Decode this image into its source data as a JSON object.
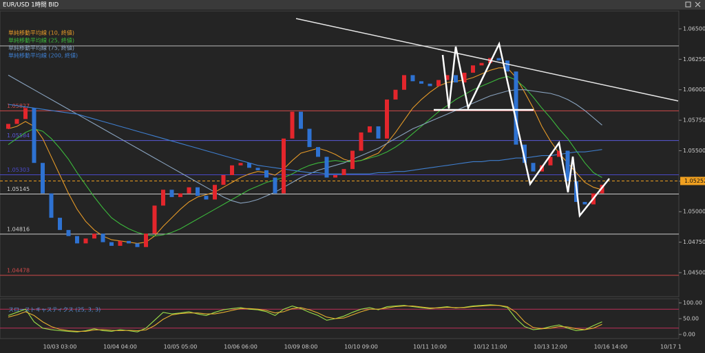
{
  "window": {
    "title": "EUR/USD 1時間 BID"
  },
  "chart_data": [
    {
      "type": "candlestick",
      "categories": [
        null,
        null,
        null,
        null,
        null,
        null,
        "10/03 03:00",
        null,
        null,
        null,
        null,
        null,
        null,
        "10/04 04:00",
        null,
        null,
        null,
        null,
        null,
        null,
        "10/05 05:00",
        null,
        null,
        null,
        null,
        null,
        null,
        "10/06 06:00",
        null,
        null,
        null,
        null,
        null,
        null,
        "10/09 08:00",
        null,
        null,
        null,
        null,
        null,
        null,
        "10/10 09:00",
        null,
        null,
        null,
        null,
        null,
        null,
        null,
        "10/11 10:00",
        null,
        null,
        null,
        null,
        null,
        null,
        "10/12 11:00",
        null,
        null,
        null,
        null,
        null,
        null,
        "10/13 12:00",
        null,
        null,
        null,
        null,
        null,
        null,
        "10/16 14:00",
        null,
        null,
        null,
        null,
        null,
        null,
        "10/17 1"
      ],
      "open": [
        1.0568,
        1.0572,
        1.0576,
        1.0585,
        1.054,
        1.0515,
        1.0495,
        1.0485,
        1.048,
        1.0474,
        1.0478,
        1.0482,
        1.0475,
        1.0472,
        1.0476,
        1.0474,
        1.0471,
        1.0482,
        1.0505,
        1.0518,
        1.0512,
        1.0515,
        1.052,
        1.0513,
        1.051,
        1.0522,
        1.053,
        1.0538,
        1.054,
        1.0536,
        1.0534,
        1.0528,
        1.0515,
        1.056,
        1.0582,
        1.0568,
        1.0553,
        1.0545,
        1.0528,
        1.053,
        1.0535,
        1.055,
        1.0565,
        1.057,
        1.056,
        1.0592,
        1.06,
        1.0612,
        1.0607,
        1.0605,
        1.0603,
        1.0608,
        1.0612,
        1.0606,
        1.0614,
        1.062,
        1.0622,
        1.0626,
        1.0624,
        1.0615,
        1.0555,
        1.054,
        1.0533,
        1.0538,
        1.0545,
        1.055,
        1.0525,
        1.0508,
        1.0506,
        1.0515,
        null,
        null,
        null,
        null,
        null,
        null,
        null,
        null
      ],
      "close": [
        1.0572,
        1.0576,
        1.0585,
        1.054,
        1.0515,
        1.0495,
        1.0485,
        1.048,
        1.0474,
        1.0478,
        1.0482,
        1.0475,
        1.0472,
        1.0476,
        1.0474,
        1.0471,
        1.0482,
        1.0505,
        1.0518,
        1.0512,
        1.0515,
        1.052,
        1.0513,
        1.051,
        1.0522,
        1.053,
        1.0538,
        1.054,
        1.0536,
        1.0534,
        1.0528,
        1.0515,
        1.056,
        1.0582,
        1.0568,
        1.0553,
        1.0545,
        1.0528,
        1.053,
        1.0535,
        1.055,
        1.0565,
        1.057,
        1.056,
        1.0592,
        1.06,
        1.0612,
        1.0607,
        1.0605,
        1.0603,
        1.0608,
        1.0612,
        1.0606,
        1.0614,
        1.062,
        1.0622,
        1.0626,
        1.0624,
        1.0615,
        1.0555,
        1.054,
        1.0533,
        1.0538,
        1.0545,
        1.055,
        1.0525,
        1.0508,
        1.0506,
        1.0515,
        1.0522,
        null,
        null,
        null,
        null,
        null,
        null,
        null,
        null
      ],
      "up_color": "#e3262c",
      "down_color": "#2e72d2",
      "series": [
        {
          "name": "単純移動平均線 (10, 終値)",
          "color": "#e69a28",
          "values": [
            1.0568,
            1.057,
            1.0574,
            1.057,
            1.056,
            1.0545,
            1.053,
            1.0515,
            1.0502,
            1.0492,
            1.0485,
            1.048,
            1.0477,
            1.0476,
            1.0475,
            1.0474,
            1.0475,
            1.048,
            1.0488,
            1.0495,
            1.0502,
            1.0508,
            1.0512,
            1.0514,
            1.0516,
            1.052,
            1.0524,
            1.0528,
            1.0531,
            1.0533,
            1.0532,
            1.053,
            1.0535,
            1.0542,
            1.0548,
            1.055,
            1.0552,
            1.055,
            1.0547,
            1.0543,
            1.0541,
            1.0542,
            1.0545,
            1.0548,
            1.0556,
            1.0565,
            1.0575,
            1.0585,
            1.0592,
            1.0598,
            1.0603,
            1.0606,
            1.0607,
            1.0608,
            1.061,
            1.0613,
            1.0616,
            1.0618,
            1.0618,
            1.061,
            1.0598,
            1.0585,
            1.057,
            1.0558,
            1.0548,
            1.054,
            1.0532,
            1.0524,
            1.052,
            1.0518,
            null,
            null,
            null,
            null,
            null,
            null,
            null,
            null
          ]
        },
        {
          "name": "単純移動平均線 (25, 終値)",
          "color": "#3cb83c",
          "values": [
            1.0555,
            1.056,
            1.0565,
            1.0568,
            1.0566,
            1.056,
            1.0552,
            1.0543,
            1.0532,
            1.0522,
            1.0512,
            1.0503,
            1.0495,
            1.049,
            1.0486,
            1.0483,
            1.0481,
            1.048,
            1.0481,
            1.0483,
            1.0486,
            1.049,
            1.0494,
            1.0498,
            1.0502,
            1.0506,
            1.051,
            1.0514,
            1.0518,
            1.0521,
            1.0524,
            1.0526,
            1.0528,
            1.0531,
            1.0535,
            1.0538,
            1.054,
            1.0541,
            1.0542,
            1.0541,
            1.0541,
            1.0542,
            1.0544,
            1.0546,
            1.0549,
            1.0553,
            1.0558,
            1.0564,
            1.057,
            1.0576,
            1.0582,
            1.0587,
            1.0592,
            1.0596,
            1.06,
            1.0603,
            1.0606,
            1.0609,
            1.0611,
            1.0608,
            1.0602,
            1.0594,
            1.0585,
            1.0577,
            1.0568,
            1.056,
            1.055,
            1.054,
            1.0532,
            1.0528,
            null,
            null,
            null,
            null,
            null,
            null,
            null,
            null
          ]
        },
        {
          "name": "単純移動平均線 (75, 終値)",
          "color": "#8aa4c0",
          "values": [
            1.0612,
            1.0608,
            1.0604,
            1.06,
            1.0596,
            1.0592,
            1.0588,
            1.0584,
            1.058,
            1.0576,
            1.0572,
            1.0568,
            1.0564,
            1.056,
            1.0556,
            1.0552,
            1.0548,
            1.0544,
            1.054,
            1.0536,
            1.0532,
            1.0528,
            1.0524,
            1.052,
            1.0516,
            1.0512,
            1.0509,
            1.0507,
            1.0508,
            1.051,
            1.0513,
            1.0516,
            1.052,
            1.0524,
            1.0528,
            1.0531,
            1.0534,
            1.0536,
            1.0538,
            1.054,
            1.0543,
            1.0546,
            1.0549,
            1.0552,
            1.0556,
            1.056,
            1.0564,
            1.0568,
            1.0571,
            1.0574,
            1.0577,
            1.058,
            1.0583,
            1.0586,
            1.0589,
            1.0592,
            1.0595,
            1.0597,
            1.0599,
            1.06,
            1.06,
            1.0599,
            1.0598,
            1.0597,
            1.0595,
            1.0592,
            1.0588,
            1.0583,
            1.0577,
            1.0571,
            null,
            null,
            null,
            null,
            null,
            null,
            null,
            null
          ]
        },
        {
          "name": "単純移動平均線 (200, 終値)",
          "color": "#3f7fd0",
          "values": [
            1.0588,
            1.0587,
            1.0586,
            1.0585,
            1.0584,
            1.0583,
            1.0582,
            1.0581,
            1.058,
            1.0578,
            1.0576,
            1.0574,
            1.0572,
            1.057,
            1.0568,
            1.0566,
            1.0564,
            1.0562,
            1.056,
            1.0558,
            1.0556,
            1.0554,
            1.0552,
            1.055,
            1.0548,
            1.0546,
            1.0544,
            1.0542,
            1.054,
            1.0538,
            1.0537,
            1.0536,
            1.0535,
            1.0534,
            1.0533,
            1.0532,
            1.0532,
            1.0531,
            1.0531,
            1.0531,
            1.0531,
            1.0531,
            1.0531,
            1.0532,
            1.0532,
            1.0533,
            1.0533,
            1.0534,
            1.0535,
            1.0536,
            1.0537,
            1.0538,
            1.0539,
            1.054,
            1.0541,
            1.0541,
            1.0542,
            1.0542,
            1.0543,
            1.0544,
            1.0544,
            1.0545,
            1.0546,
            1.0546,
            1.0547,
            1.0548,
            1.0549,
            1.0549,
            1.055,
            1.0551,
            null,
            null,
            null,
            null,
            null,
            null,
            null,
            null
          ]
        }
      ],
      "ylim": [
        1.04314,
        1.06635
      ],
      "yticks": [
        {
          "value": 1.045,
          "label": "1.04500"
        },
        {
          "value": 1.0475,
          "label": "1.04750"
        },
        {
          "value": 1.05,
          "label": "1.05000"
        },
        {
          "value": 1.0525,
          "label": "1.05250"
        },
        {
          "value": 1.055,
          "label": "1.05500"
        },
        {
          "value": 1.0575,
          "label": "1.05750"
        },
        {
          "value": 1.06,
          "label": "1.06000"
        },
        {
          "value": 1.0625,
          "label": "1.06250"
        },
        {
          "value": 1.065,
          "label": "1.06500"
        }
      ],
      "levels": [
        {
          "value": 1.05827,
          "color": "#d04a4a"
        },
        {
          "value": 1.05584,
          "color": "#5a5ad8"
        },
        {
          "value": 1.05303,
          "color": "#4a4ac8"
        },
        {
          "value": 1.05145,
          "color": "#cccccc"
        },
        {
          "value": 1.04816,
          "color": "#cccccc"
        },
        {
          "value": 1.04478,
          "color": "#d04a4a"
        }
      ],
      "hlines": [
        1.0636
      ],
      "current": 1.05252,
      "current_color": "#f0a020"
    },
    {
      "type": "line",
      "title": "スローストキャスティクス (25, 3, 3)",
      "series": [
        {
          "color": "#9be04a",
          "values": [
            60,
            70,
            80,
            40,
            20,
            15,
            12,
            10,
            8,
            12,
            18,
            12,
            10,
            15,
            12,
            8,
            20,
            45,
            70,
            65,
            68,
            72,
            65,
            60,
            70,
            78,
            82,
            85,
            80,
            78,
            72,
            60,
            80,
            90,
            82,
            70,
            60,
            45,
            50,
            58,
            70,
            80,
            85,
            78,
            88,
            90,
            92,
            88,
            85,
            82,
            85,
            88,
            84,
            86,
            90,
            92,
            94,
            92,
            85,
            50,
            25,
            15,
            18,
            25,
            30,
            20,
            12,
            15,
            28,
            40,
            null,
            null,
            null,
            null,
            null,
            null,
            null,
            null
          ]
        },
        {
          "color": "#e8b030",
          "values": [
            55,
            62,
            72,
            60,
            40,
            25,
            16,
            12,
            10,
            10,
            14,
            15,
            13,
            12,
            13,
            12,
            14,
            28,
            48,
            62,
            66,
            68,
            68,
            65,
            65,
            70,
            76,
            82,
            82,
            80,
            76,
            68,
            72,
            82,
            85,
            78,
            68,
            55,
            50,
            52,
            62,
            72,
            80,
            80,
            84,
            88,
            90,
            90,
            87,
            84,
            84,
            86,
            85,
            85,
            88,
            90,
            92,
            92,
            88,
            70,
            40,
            22,
            18,
            20,
            25,
            24,
            18,
            15,
            20,
            32,
            null,
            null,
            null,
            null,
            null,
            null,
            null,
            null
          ]
        }
      ],
      "ylim": [
        -10.9,
        108.7
      ],
      "yticks": [
        {
          "value": 0,
          "label": "0.00"
        },
        {
          "value": 50,
          "label": "50.00"
        },
        {
          "value": 100,
          "label": "100.00"
        }
      ],
      "levels": [
        80,
        20
      ],
      "level_color": "#c0305a"
    }
  ]
}
